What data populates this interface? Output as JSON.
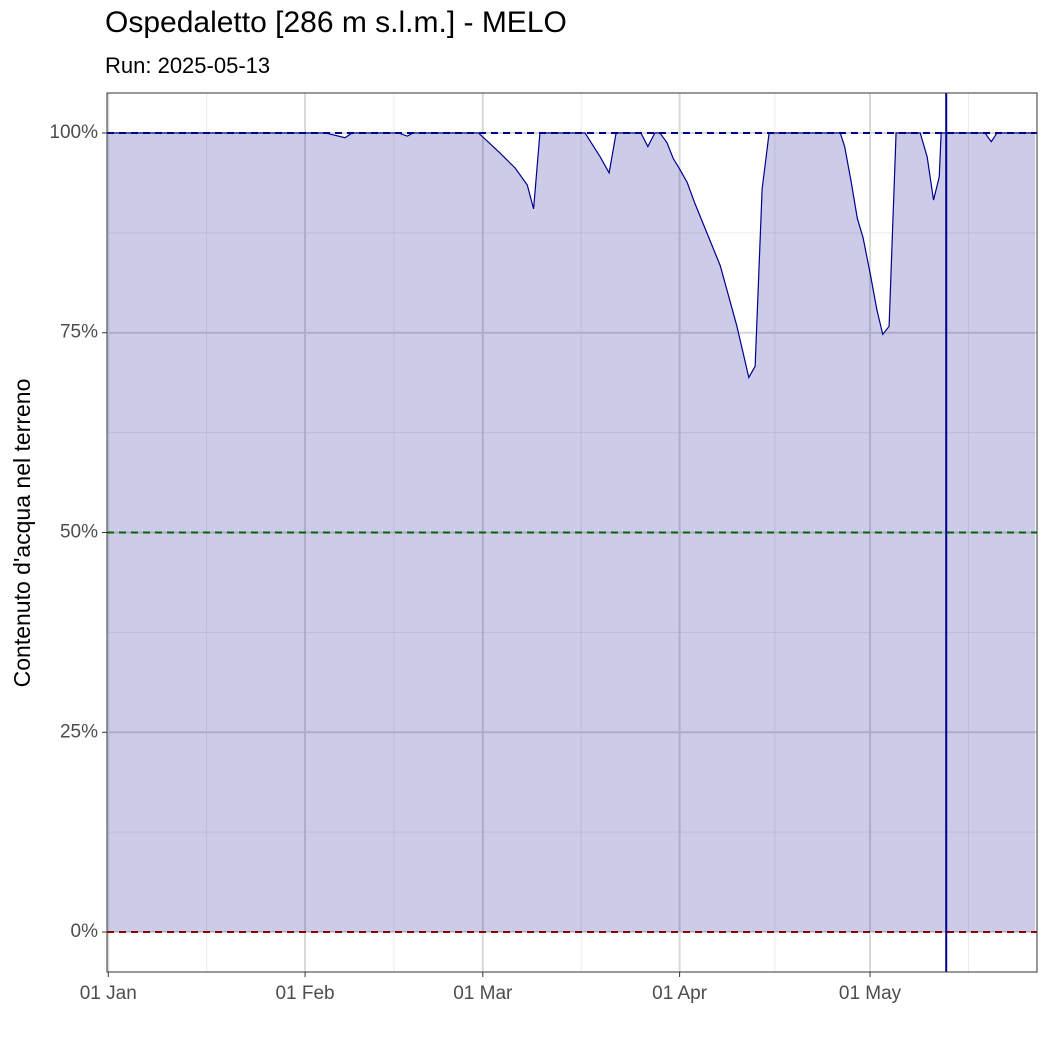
{
  "chart_data": {
    "type": "area",
    "title": "Ospedaletto [286 m s.l.m.] - MELO",
    "subtitle": "Run: 2025-05-13",
    "y_label": "Contenuto d'acqua nel terreno",
    "x": [
      0,
      34.2,
      37.3,
      38.4,
      45.7,
      47.1,
      48,
      58.3,
      59,
      61.7,
      64.1,
      66,
      67,
      68,
      75.1,
      75.9,
      77.5,
      78.9,
      80,
      83.9,
      85,
      86.1,
      86.9,
      88,
      89,
      90,
      91.2,
      92.4,
      94.3,
      96.4,
      99,
      100,
      100.9,
      101.9,
      103,
      104.1,
      115.3,
      116,
      117,
      118,
      118.9,
      120,
      121.1,
      122,
      123,
      124.1,
      127.9,
      129,
      130,
      130.9,
      131.2,
      138.1,
      139.1,
      140,
      146
    ],
    "values": [
      100,
      100,
      99.4,
      100,
      100,
      99.6,
      100,
      100,
      99.5,
      97.5,
      95.6,
      93.5,
      90.5,
      100,
      100,
      99,
      97,
      95,
      100,
      100,
      98.3,
      100,
      100,
      98.8,
      96.8,
      95.5,
      93.8,
      91.2,
      87.5,
      83.4,
      75.9,
      72.5,
      69.4,
      70.8,
      93,
      100,
      100,
      98.3,
      94,
      89.3,
      86.9,
      82.5,
      77.8,
      74.8,
      75.8,
      100,
      100,
      97,
      91.6,
      94.5,
      100,
      100,
      98.9,
      100,
      100
    ],
    "color": "#00008b",
    "fill_opacity": 0.2,
    "xlim": [
      -0.2,
      146.3
    ],
    "xticks": [
      {
        "value": 0,
        "label": "01 Jan"
      },
      {
        "value": 31,
        "label": "01 Feb"
      },
      {
        "value": 59,
        "label": "01 Mar"
      },
      {
        "value": 90,
        "label": "01 Apr"
      },
      {
        "value": 120,
        "label": "01 May"
      }
    ],
    "xminor": [
      15.5,
      45,
      74.5,
      105,
      135.5
    ],
    "ylim": [
      -5,
      105
    ],
    "yticks": [
      {
        "value": 0,
        "label": "0%"
      },
      {
        "value": 25,
        "label": "25%"
      },
      {
        "value": 50,
        "label": "50%"
      },
      {
        "value": 75,
        "label": "75%"
      },
      {
        "value": 100,
        "label": "100%"
      }
    ],
    "yminor": [
      12.5,
      37.5,
      62.5,
      87.5
    ],
    "grid": true,
    "hlines": [
      {
        "value": 100,
        "color": "#00008b"
      },
      {
        "value": 50,
        "color": "#006400"
      },
      {
        "value": 0,
        "color": "#8b0000"
      }
    ],
    "vlines": [
      {
        "value": 132,
        "color": "#00008b"
      }
    ]
  }
}
